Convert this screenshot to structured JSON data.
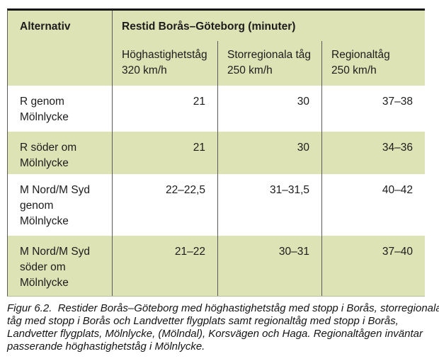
{
  "colors": {
    "table_green": "#dee3b5",
    "divider_gray": "#5a5a5a",
    "top_border_black": "#161616",
    "text": "#1c1c1c"
  },
  "table": {
    "corner_header": "Alternativ",
    "span_header": "Restid Borås–Göteborg (minuter)",
    "col_headers": [
      "Höghastighetståg\n320 km/h",
      "Storregionala tåg\n250 km/h",
      "Regionaltåg\n250 km/h"
    ],
    "rows": [
      {
        "label": "R genom\nMölnlycke",
        "values": [
          "21",
          "30",
          "37–38"
        ]
      },
      {
        "label": "R söder om\nMölnlycke",
        "values": [
          "21",
          "30",
          "34–36"
        ]
      },
      {
        "label": "M Nord/M Syd\ngenom\nMölnlycke",
        "values": [
          "22–22,5",
          "31–31,5",
          "40–42"
        ]
      },
      {
        "label": "M Nord/M Syd\nsöder om\nMölnlycke",
        "values": [
          "21–22",
          "30–31",
          "37–40"
        ]
      }
    ]
  },
  "caption": "Figur 6.2.  Restider Borås–Göteborg med höghastighetståg med stopp i Borås, storregionala\ntåg med stopp i Borås och Landvetter flygplats samt regionaltåg med stopp i Borås,\nLandvetter flygplats, Mölnlycke, (Mölndal), Korsvägen och Haga. Regionaltågen inväntar\npasserande höghastighetståg i Mölnlycke."
}
